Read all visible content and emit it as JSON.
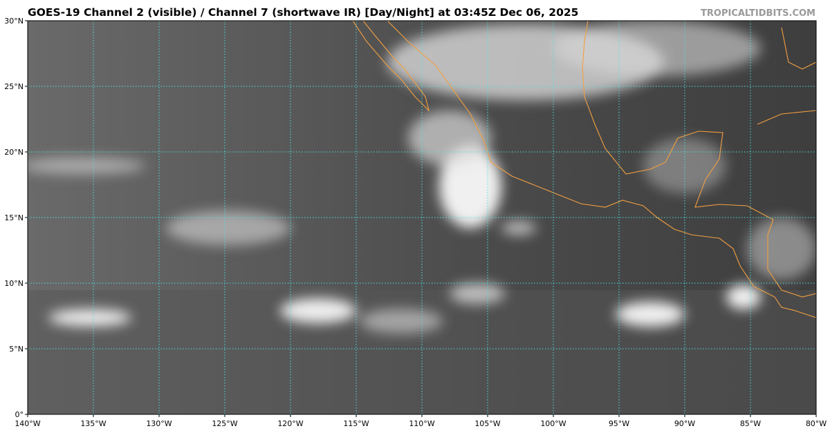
{
  "title": "GOES-19 Channel 2 (visible) / Channel 7 (shortwave IR) [Day/Night] at 03:45Z Dec 06, 2025",
  "credit": "TROPICALTIDBITS.COM",
  "map": {
    "xlim": [
      -140,
      -80
    ],
    "ylim": [
      0,
      30
    ],
    "lon_ticks": [
      {
        "value": -140,
        "label": "140°W"
      },
      {
        "value": -135,
        "label": "135°W"
      },
      {
        "value": -130,
        "label": "130°W"
      },
      {
        "value": -125,
        "label": "125°W"
      },
      {
        "value": -120,
        "label": "120°W"
      },
      {
        "value": -115,
        "label": "115°W"
      },
      {
        "value": -110,
        "label": "110°W"
      },
      {
        "value": -105,
        "label": "105°W"
      },
      {
        "value": -100,
        "label": "100°W"
      },
      {
        "value": -95,
        "label": "95°W"
      },
      {
        "value": -90,
        "label": "90°W"
      },
      {
        "value": -85,
        "label": "85°W"
      },
      {
        "value": -80,
        "label": "80°W"
      }
    ],
    "lat_ticks": [
      {
        "value": 0,
        "label": "0°"
      },
      {
        "value": 5,
        "label": "5°N"
      },
      {
        "value": 10,
        "label": "10°N"
      },
      {
        "value": 15,
        "label": "15°N"
      },
      {
        "value": 20,
        "label": "20°N"
      },
      {
        "value": 25,
        "label": "25°N"
      },
      {
        "value": 30,
        "label": "30°N"
      }
    ]
  }
}
